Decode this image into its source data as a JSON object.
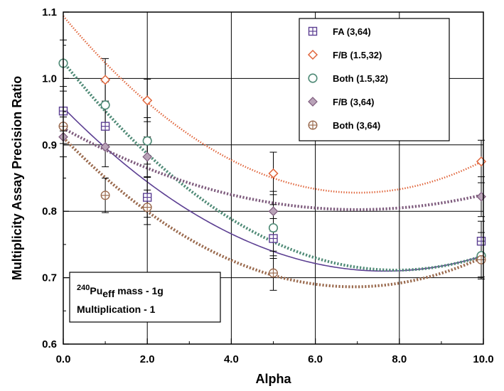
{
  "chart_data": {
    "type": "scatter",
    "xlabel": "Alpha",
    "ylabel": "Multiplicity Assay Precision Ratio",
    "xlim": [
      0.0,
      10.0
    ],
    "ylim": [
      0.6,
      1.1
    ],
    "x_ticks": [
      0,
      2,
      4,
      6,
      8,
      10
    ],
    "x_tick_labels": [
      "0.0",
      "2.0",
      "4.0",
      "6.0",
      "8.0",
      "10.0"
    ],
    "y_ticks": [
      0.6,
      0.7,
      0.8,
      0.9,
      1.0,
      1.1
    ],
    "y_tick_labels": [
      "0.6",
      "0.7",
      "0.8",
      "0.9",
      "1.0",
      "1.1"
    ],
    "grid": true,
    "legend_position": "top-right",
    "x": [
      0,
      1,
      2,
      5,
      10
    ],
    "series": [
      {
        "name": "FA (3,64)",
        "color": "#5c3f92",
        "marker": "square-plus",
        "values": [
          0.951,
          0.928,
          0.821,
          0.759,
          0.755
        ],
        "errors": [
          0.03,
          0.03,
          0.03,
          0.03,
          0.03
        ],
        "fit": [
          0.956,
          -0.0643,
          0.0042
        ],
        "fit_style": "solid"
      },
      {
        "name": "F/B (1.5,32)",
        "color": "#e0653b",
        "marker": "diamond",
        "values": [
          null,
          0.998,
          0.967,
          0.857,
          0.875
        ],
        "errors": [
          0,
          0.032,
          0.032,
          0.032,
          0.032
        ],
        "fit": [
          1.094,
          -0.0758,
          0.0054
        ],
        "fit_style": "dotted"
      },
      {
        "name": "Both (1.5,32)",
        "color": "#4f8a76",
        "marker": "circle",
        "values": [
          1.023,
          0.96,
          0.906,
          0.775,
          0.733
        ],
        "errors": [
          0.035,
          0.035,
          0.035,
          0.035,
          0.035
        ],
        "fit": [
          1.025,
          -0.0792,
          0.005
        ],
        "fit_style": "dotted-thick"
      },
      {
        "name": "F/B (3,64)",
        "color": "#7d5a7c",
        "marker": "diamond-filled",
        "values": [
          0.912,
          0.897,
          0.882,
          0.8,
          0.822
        ],
        "errors": [
          0.03,
          0.03,
          0.03,
          0.03,
          0.03
        ],
        "fit": [
          0.925,
          -0.035,
          0.0025
        ],
        "fit_style": "dotted-thick"
      },
      {
        "name": "Both (3,64)",
        "color": "#9a6a4e",
        "marker": "circle-plus",
        "values": [
          0.928,
          0.824,
          0.806,
          0.707,
          0.727
        ],
        "errors": [
          0.026,
          0.026,
          0.026,
          0.026,
          0.026
        ],
        "fit": [
          0.911,
          -0.065,
          0.0047
        ],
        "fit_style": "dotted-thick"
      }
    ],
    "annotation": {
      "line1_sup": "240",
      "line1_main": "Pu",
      "line1_sub": "eff",
      "line1_rest": " mass - 1g",
      "line2": "Multiplication - 1"
    }
  }
}
